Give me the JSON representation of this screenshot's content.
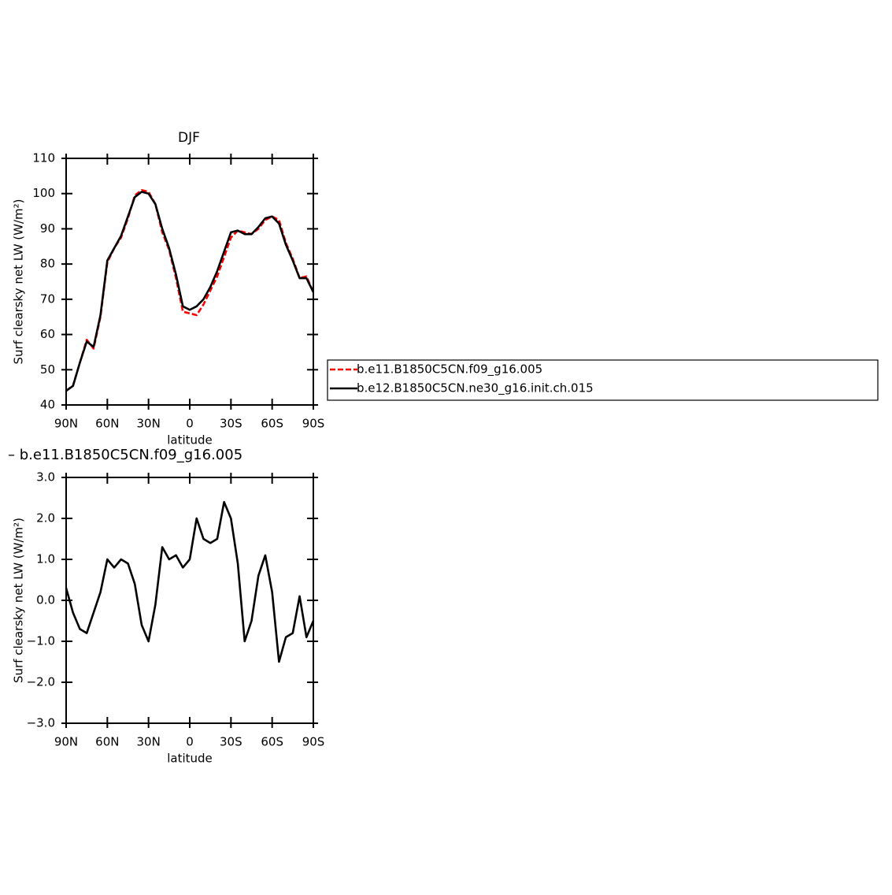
{
  "chart_data": [
    {
      "type": "line",
      "title": "DJF",
      "x_label": "latitude",
      "y_label": "Surf clearsky net LW (W/m²)",
      "x": [
        90,
        85,
        80,
        75,
        70,
        65,
        60,
        55,
        50,
        45,
        40,
        35,
        30,
        25,
        20,
        15,
        10,
        5,
        0,
        -5,
        -10,
        -15,
        -20,
        -25,
        -30,
        -35,
        -40,
        -45,
        -50,
        -55,
        -60,
        -65,
        -70,
        -75,
        -80,
        -85,
        -90
      ],
      "series": [
        {
          "name": "b.e11.B1850C5CN.f09_g16.005",
          "color": "#ff0000",
          "style": "dashed",
          "values": [
            44,
            45.5,
            52,
            58.5,
            56,
            65,
            80.5,
            84.5,
            87.5,
            93,
            99.5,
            101,
            100.5,
            97,
            89,
            84,
            76,
            66.5,
            66,
            65.5,
            68.5,
            72.5,
            76.5,
            82,
            87.5,
            89.5,
            89,
            88.5,
            90,
            92.5,
            93.5,
            92.5,
            86,
            81.5,
            76,
            76.5,
            72
          ]
        },
        {
          "name": "b.e12.B1850C5CN.ne30_g16.init.ch.015",
          "color": "#000000",
          "style": "solid",
          "values": [
            44,
            45.4,
            52,
            58,
            56.5,
            65.5,
            81,
            84.5,
            88,
            93.5,
            99,
            100.5,
            100,
            97,
            90,
            84.5,
            77,
            68,
            67,
            68,
            70,
            73.5,
            78,
            83.5,
            89,
            89.5,
            88.5,
            88.5,
            90.5,
            93,
            93.5,
            91.5,
            85.5,
            81,
            76,
            76,
            72
          ]
        }
      ],
      "xlim": [
        90,
        -90
      ],
      "xticks": [
        {
          "value": 90,
          "label": "90N"
        },
        {
          "value": 60,
          "label": "60N"
        },
        {
          "value": 30,
          "label": "30N"
        },
        0,
        {
          "value": -30,
          "label": "30S"
        },
        {
          "value": -60,
          "label": "60S"
        },
        {
          "value": -90,
          "label": "90S"
        }
      ],
      "ylim": [
        40,
        110
      ],
      "yticks": [
        40,
        50,
        60,
        70,
        80,
        90,
        100,
        110
      ],
      "legend": "right"
    },
    {
      "type": "line",
      "title": "– b.e11.B1850C5CN.f09_g16.005",
      "x_label": "latitude",
      "y_label": "Surf clearsky net LW (W/m²)",
      "x": [
        90,
        85,
        80,
        75,
        70,
        65,
        60,
        55,
        50,
        45,
        40,
        35,
        30,
        25,
        20,
        15,
        10,
        5,
        0,
        -5,
        -10,
        -15,
        -20,
        -25,
        -30,
        -35,
        -40,
        -45,
        -50,
        -55,
        -60,
        -65,
        -70,
        -75,
        -80,
        -85,
        -90
      ],
      "series": [
        {
          "color": "#000000",
          "style": "solid",
          "values": [
            0.3,
            -0.3,
            -0.7,
            -0.8,
            -0.3,
            0.2,
            1.0,
            0.8,
            1.0,
            0.9,
            0.4,
            -0.6,
            -1.0,
            -0.1,
            1.3,
            1.0,
            1.1,
            0.8,
            1.0,
            2.0,
            1.5,
            1.4,
            1.5,
            2.4,
            2.0,
            0.9,
            -1.0,
            -0.5,
            0.6,
            1.1,
            0.2,
            -1.5,
            -0.9,
            -0.8,
            0.1,
            -0.9,
            -0.5
          ]
        }
      ],
      "xlim": [
        90,
        -90
      ],
      "xticks": [
        {
          "value": 90,
          "label": "90N"
        },
        {
          "value": 60,
          "label": "60N"
        },
        {
          "value": 30,
          "label": "30N"
        },
        0,
        {
          "value": -30,
          "label": "30S"
        },
        {
          "value": -60,
          "label": "60S"
        },
        {
          "value": -90,
          "label": "90S"
        }
      ],
      "ylim": [
        -3,
        3
      ],
      "yticks": [
        {
          "value": -3,
          "label": "−3.0"
        },
        {
          "value": -2,
          "label": "−2.0"
        },
        {
          "value": -1,
          "label": "−1.0"
        },
        {
          "value": 0,
          "label": "0.0"
        },
        {
          "value": 1,
          "label": "1.0"
        },
        {
          "value": 2,
          "label": "2.0"
        },
        {
          "value": 3,
          "label": "3.0"
        }
      ]
    }
  ]
}
